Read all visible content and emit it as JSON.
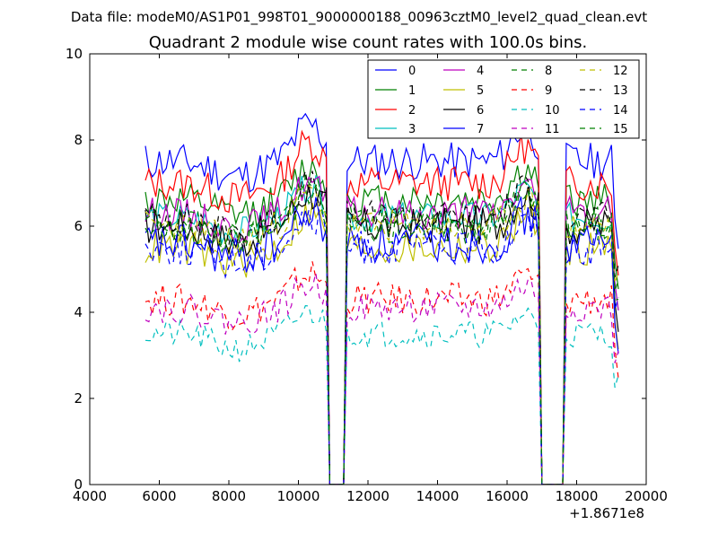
{
  "chart_data": {
    "type": "line",
    "suptitle": "Data file: modeM0/AS1P01_998T01_9000000188_00963cztM0_level2_quad_clean.evt",
    "title": "Quadrant 2 module wise count rates with 100.0s bins.",
    "xlabel": "",
    "ylabel": "",
    "x_offset_label": "+1.8671e8",
    "xlim": [
      4000,
      20000
    ],
    "ylim": [
      0,
      10
    ],
    "xticks": [
      "4000",
      "6000",
      "8000",
      "10000",
      "12000",
      "14000",
      "16000",
      "18000",
      "20000"
    ],
    "yticks": [
      "0",
      "2",
      "4",
      "6",
      "8",
      "10"
    ],
    "x_start": 5600,
    "x_end": 19200,
    "bin": 100,
    "gaps": [
      [
        10900,
        11300
      ],
      [
        17000,
        17600
      ]
    ],
    "legend_position": "top-right",
    "legend_columns": 4,
    "series": [
      {
        "name": "0",
        "color": "#0000ff",
        "dash": "solid",
        "level": 7.5,
        "amp": 0.28,
        "bump": 0.85
      },
      {
        "name": "1",
        "color": "#008000",
        "dash": "solid",
        "level": 6.6,
        "amp": 0.25,
        "bump": 0.75
      },
      {
        "name": "2",
        "color": "#ff0000",
        "dash": "solid",
        "level": 7.0,
        "amp": 0.26,
        "bump": 0.95
      },
      {
        "name": "3",
        "color": "#00bfbf",
        "dash": "solid",
        "level": 6.2,
        "amp": 0.22,
        "bump": 0.7
      },
      {
        "name": "4",
        "color": "#bf00bf",
        "dash": "solid",
        "level": 6.3,
        "amp": 0.24,
        "bump": 0.7
      },
      {
        "name": "5",
        "color": "#bfbf00",
        "dash": "solid",
        "level": 5.5,
        "amp": 0.26,
        "bump": 0.8
      },
      {
        "name": "6",
        "color": "#000000",
        "dash": "solid",
        "level": 6.0,
        "amp": 0.28,
        "bump": 0.8
      },
      {
        "name": "7",
        "color": "#0000ff",
        "dash": "solid",
        "level": 5.6,
        "amp": 0.3,
        "bump": 0.7
      },
      {
        "name": "8",
        "color": "#008000",
        "dash": "dashed",
        "level": 6.1,
        "amp": 0.22,
        "bump": 0.75
      },
      {
        "name": "9",
        "color": "#ff0000",
        "dash": "dashed",
        "level": 4.3,
        "amp": 0.24,
        "bump": 0.6
      },
      {
        "name": "10",
        "color": "#00bfbf",
        "dash": "dashed",
        "level": 3.5,
        "amp": 0.2,
        "bump": 0.5
      },
      {
        "name": "11",
        "color": "#bf00bf",
        "dash": "dashed",
        "level": 4.1,
        "amp": 0.22,
        "bump": 0.55
      },
      {
        "name": "12",
        "color": "#bfbf00",
        "dash": "dashed",
        "level": 6.0,
        "amp": 0.24,
        "bump": 0.75
      },
      {
        "name": "13",
        "color": "#000000",
        "dash": "dashed",
        "level": 6.2,
        "amp": 0.24,
        "bump": 0.75
      },
      {
        "name": "14",
        "color": "#0000ff",
        "dash": "dashed",
        "level": 5.5,
        "amp": 0.26,
        "bump": 0.65
      },
      {
        "name": "15",
        "color": "#008000",
        "dash": "dashed",
        "level": 6.0,
        "amp": 0.24,
        "bump": 0.7
      }
    ]
  }
}
